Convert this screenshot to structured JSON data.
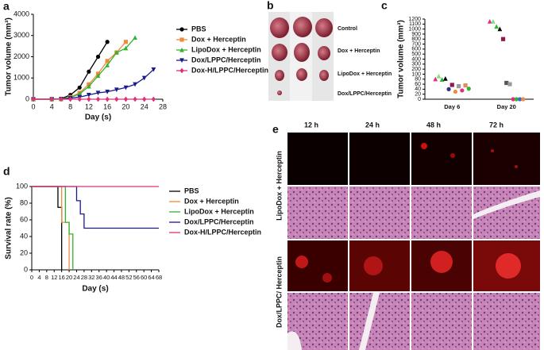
{
  "chart_data": [
    {
      "type": "line",
      "xlabel": "Day (s)",
      "ylabel": "Tumor volume (mm³)",
      "xlim": [
        0,
        28
      ],
      "xticks": [
        0,
        4,
        8,
        12,
        16,
        20,
        24,
        28
      ],
      "ylim": [
        0,
        4000
      ],
      "yticks": [
        0,
        1000,
        2000,
        3000,
        4000
      ],
      "series": [
        {
          "name": "PBS",
          "color": "#000000",
          "marker": "circle",
          "x": [
            0,
            4,
            6,
            8,
            10,
            12,
            14,
            16
          ],
          "values": [
            0,
            0,
            20,
            200,
            550,
            1300,
            2000,
            2700
          ]
        },
        {
          "name": "Dox + Herceptin",
          "color": "#f08a3c",
          "marker": "square",
          "x": [
            0,
            4,
            6,
            8,
            10,
            12,
            14,
            16,
            18,
            20
          ],
          "values": [
            0,
            0,
            10,
            100,
            300,
            700,
            1200,
            1800,
            2200,
            2700
          ]
        },
        {
          "name": "LipoDox + Herceptin",
          "color": "#2fb52f",
          "marker": "triangle",
          "x": [
            0,
            4,
            6,
            8,
            10,
            12,
            14,
            16,
            18,
            20,
            22
          ],
          "values": [
            0,
            0,
            10,
            80,
            250,
            600,
            1100,
            1600,
            2200,
            2400,
            2900
          ]
        },
        {
          "name": "Dox/LPPC/Herceptin",
          "color": "#1a1a8c",
          "marker": "triangle-down",
          "x": [
            0,
            4,
            6,
            8,
            10,
            12,
            14,
            16,
            18,
            20,
            22,
            24,
            26
          ],
          "values": [
            0,
            0,
            10,
            50,
            100,
            200,
            300,
            350,
            450,
            550,
            700,
            1000,
            1400
          ]
        },
        {
          "name": "Dox-H/LPPC/Herceptin",
          "color": "#e0307a",
          "marker": "diamond",
          "x": [
            0,
            4,
            6,
            8,
            10,
            12,
            14,
            16,
            18,
            20,
            22,
            24,
            26
          ],
          "values": [
            0,
            0,
            0,
            0,
            0,
            0,
            0,
            0,
            0,
            0,
            0,
            0,
            0
          ]
        }
      ]
    },
    {
      "type": "scatter",
      "ylabel": "Tumor volume (mm³)",
      "yscale": "piecewise",
      "ylim": [
        0,
        1200
      ],
      "yticks": [
        0,
        20,
        40,
        60,
        80,
        100,
        200,
        300,
        400,
        500,
        600,
        700,
        800,
        900,
        1000,
        1100,
        1200
      ],
      "categories": [
        "Day 6",
        "Day 20"
      ],
      "points": [
        [
          {
            "value": 80,
            "color": "#e0307a",
            "shape": "triangle"
          },
          {
            "value": 92,
            "color": "#7de07d",
            "shape": "triangle"
          },
          {
            "value": 78,
            "color": "#2fb52f",
            "shape": "triangle"
          },
          {
            "value": 82,
            "color": "#000000",
            "shape": "triangle"
          },
          {
            "value": 40,
            "color": "#3a2a8c",
            "shape": "circle"
          },
          {
            "value": 57,
            "color": "#8c1a4a",
            "shape": "square"
          },
          {
            "value": 30,
            "color": "#f08a3c",
            "shape": "circle"
          },
          {
            "value": 52,
            "color": "#999999",
            "shape": "square"
          },
          {
            "value": 35,
            "color": "#e0307a",
            "shape": "circle"
          },
          {
            "value": 55,
            "color": "#e08a5a",
            "shape": "square"
          },
          {
            "value": 42,
            "color": "#2fb52f",
            "shape": "circle"
          }
        ],
        [
          {
            "value": 1150,
            "color": "#e0307a",
            "shape": "triangle"
          },
          {
            "value": 1150,
            "color": "#7de07d",
            "shape": "triangle"
          },
          {
            "value": 1050,
            "color": "#2fb52f",
            "shape": "triangle"
          },
          {
            "value": 1000,
            "color": "#000000",
            "shape": "triangle"
          },
          {
            "value": 800,
            "color": "#8c1a4a",
            "shape": "square"
          },
          {
            "value": 65,
            "color": "#555555",
            "shape": "square"
          },
          {
            "value": 60,
            "color": "#999999",
            "shape": "square"
          },
          {
            "value": 0,
            "color": "#e0307a",
            "shape": "circle"
          },
          {
            "value": 0,
            "color": "#2fb52f",
            "shape": "circle"
          },
          {
            "value": 0,
            "color": "#3a6ad0",
            "shape": "circle"
          },
          {
            "value": 0,
            "color": "#f08a3c",
            "shape": "circle"
          }
        ]
      ]
    },
    {
      "type": "line",
      "step": true,
      "xlabel": "Day (s)",
      "ylabel": "Survival rate (%)",
      "xlim": [
        0,
        68
      ],
      "xticks": [
        0,
        4,
        8,
        12,
        16,
        20,
        24,
        28,
        32,
        36,
        40,
        44,
        48,
        52,
        56,
        60,
        64,
        68
      ],
      "ylim": [
        0,
        100
      ],
      "yticks": [
        0,
        20,
        40,
        60,
        80,
        100
      ],
      "series": [
        {
          "name": "PBS",
          "color": "#000000",
          "x": [
            0,
            14,
            16
          ],
          "values": [
            100,
            75,
            0
          ]
        },
        {
          "name": "Dox + Herceptin",
          "color": "#f08a3c",
          "x": [
            0,
            16,
            20
          ],
          "values": [
            100,
            57,
            0
          ]
        },
        {
          "name": "LipoDox + Herceptin",
          "color": "#2fb52f",
          "x": [
            0,
            18,
            20,
            22
          ],
          "values": [
            100,
            57,
            43,
            0
          ]
        },
        {
          "name": "Dox/LPPC/Herceptin",
          "color": "#1a1a8c",
          "x": [
            0,
            24,
            26,
            28,
            68
          ],
          "values": [
            100,
            83,
            67,
            50,
            50
          ]
        },
        {
          "name": "Dox-H/LPPC/Herceptin",
          "color": "#e0307a",
          "x": [
            0,
            68
          ],
          "values": [
            100,
            100
          ]
        }
      ]
    }
  ],
  "panel_labels": [
    "a",
    "b",
    "c",
    "d",
    "e"
  ],
  "photo_panel": {
    "labels": [
      "Control",
      "Dox + Herceptin",
      "LipoDox + Herceptin",
      "Dox/LPPC/Herceptin"
    ]
  },
  "histology_panel": {
    "columns": [
      "12 h",
      "24 h",
      "48 h",
      "72 h"
    ],
    "rows": [
      "LipoDox + Herceptin",
      "Dox/LPPC/ Herceptin"
    ]
  }
}
